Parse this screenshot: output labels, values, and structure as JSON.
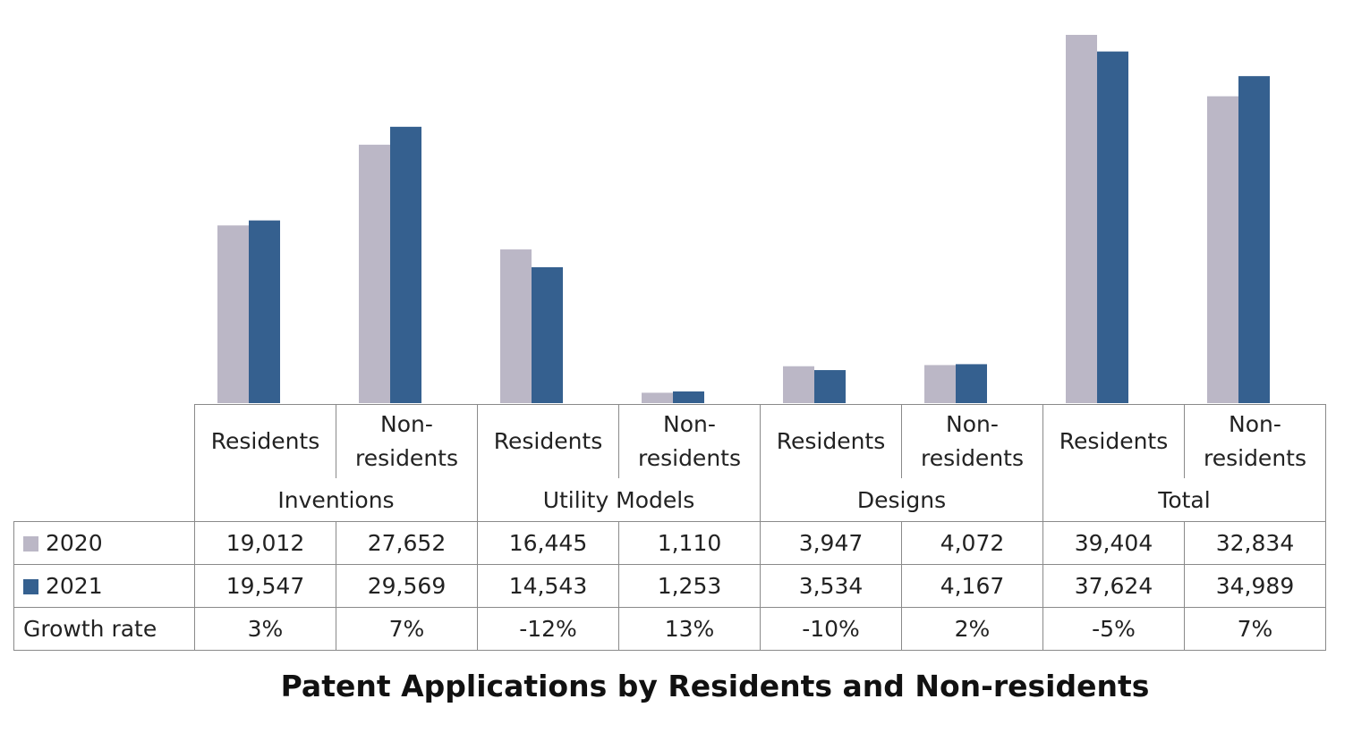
{
  "chart_data": {
    "type": "bar",
    "title": "Patent Applications by Residents and Non-residents",
    "groups": [
      {
        "label": "Inventions",
        "categories": [
          "Residents",
          "Non-\nresidents"
        ]
      },
      {
        "label": "Utility Models",
        "categories": [
          "Residents",
          "Non-\nresidents"
        ]
      },
      {
        "label": "Designs",
        "categories": [
          "Residents",
          "Non-\nresidents"
        ]
      },
      {
        "label": "Total",
        "categories": [
          "Residents",
          "Non-\nresidents"
        ]
      }
    ],
    "series": [
      {
        "name": "2020",
        "color": "#bbb7c6",
        "values": [
          19012,
          27652,
          16445,
          1110,
          3947,
          4072,
          39404,
          32834
        ],
        "labels": [
          "19,012",
          "27,652",
          "16,445",
          "1,110",
          "3,947",
          "4,072",
          "39,404",
          "32,834"
        ]
      },
      {
        "name": "2021",
        "color": "#35608f",
        "values": [
          19547,
          29569,
          14543,
          1253,
          3534,
          4167,
          37624,
          34989
        ],
        "labels": [
          "19,547",
          "29,569",
          "14,543",
          "1,253",
          "3,534",
          "4,167",
          "37,624",
          "34,989"
        ]
      }
    ],
    "growth": {
      "label": "Growth rate",
      "values": [
        "3%",
        "7%",
        "-12%",
        "13%",
        "-10%",
        "2%",
        "-5%",
        "7%"
      ]
    },
    "ylim": [
      0,
      41000
    ],
    "grid": false,
    "legend": "table-left"
  }
}
